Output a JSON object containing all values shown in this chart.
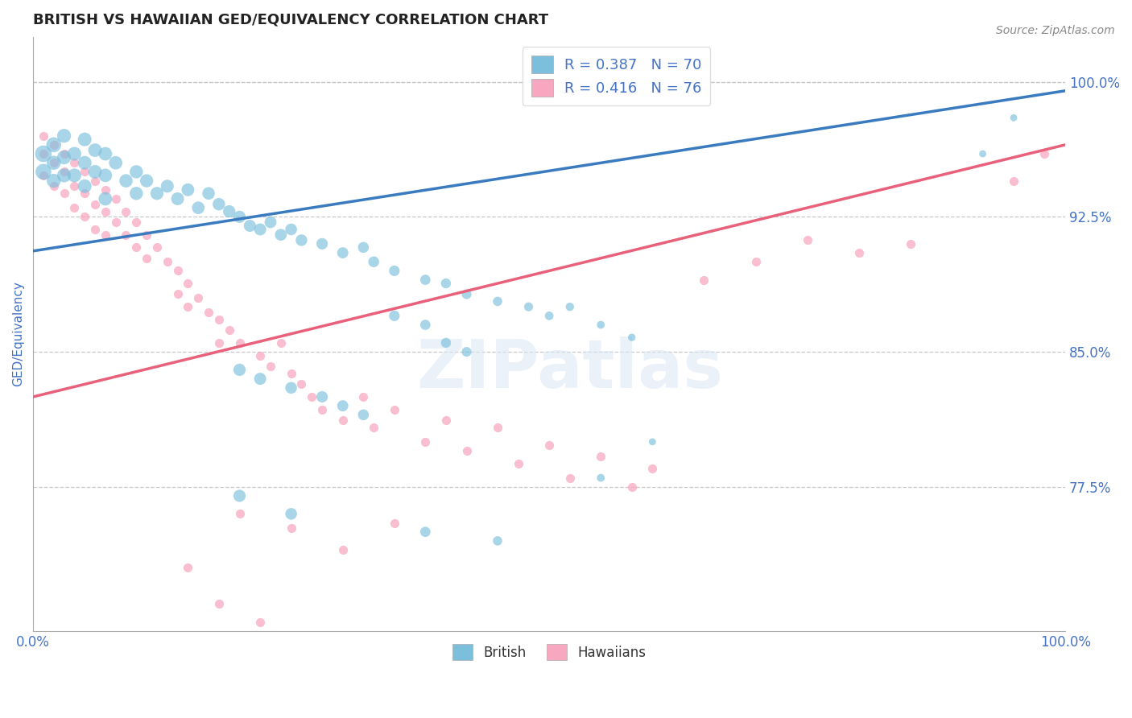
{
  "title": "BRITISH VS HAWAIIAN GED/EQUIVALENCY CORRELATION CHART",
  "source": "Source: ZipAtlas.com",
  "ylabel": "GED/Equivalency",
  "xlim": [
    0.0,
    1.0
  ],
  "ylim": [
    0.695,
    1.025
  ],
  "yticks": [
    0.775,
    0.85,
    0.925,
    1.0
  ],
  "ytick_labels": [
    "77.5%",
    "85.0%",
    "92.5%",
    "100.0%"
  ],
  "xtick_labels": [
    "0.0%",
    "100.0%"
  ],
  "xticks": [
    0.0,
    1.0
  ],
  "british_color": "#7bbfdd",
  "hawaiian_color": "#f7a8c0",
  "line_british_color": "#3a7abf",
  "line_hawaiian_color": "#e8607a",
  "british_R": 0.387,
  "british_N": 70,
  "hawaiian_R": 0.416,
  "hawaiian_N": 76,
  "legend_label_british": "British",
  "legend_label_hawaiian": "Hawaiians",
  "watermark": "ZIPatlas",
  "grid_color": "#c8c8c8",
  "title_color": "#333333",
  "axis_label_color": "#4472c4",
  "tick_label_color": "#4472c4",
  "british_points": [
    [
      0.01,
      0.96
    ],
    [
      0.01,
      0.95
    ],
    [
      0.02,
      0.965
    ],
    [
      0.02,
      0.955
    ],
    [
      0.02,
      0.945
    ],
    [
      0.03,
      0.97
    ],
    [
      0.03,
      0.958
    ],
    [
      0.03,
      0.948
    ],
    [
      0.04,
      0.96
    ],
    [
      0.04,
      0.948
    ],
    [
      0.05,
      0.968
    ],
    [
      0.05,
      0.955
    ],
    [
      0.05,
      0.942
    ],
    [
      0.06,
      0.962
    ],
    [
      0.06,
      0.95
    ],
    [
      0.07,
      0.96
    ],
    [
      0.07,
      0.948
    ],
    [
      0.07,
      0.935
    ],
    [
      0.08,
      0.955
    ],
    [
      0.09,
      0.945
    ],
    [
      0.1,
      0.95
    ],
    [
      0.1,
      0.938
    ],
    [
      0.11,
      0.945
    ],
    [
      0.12,
      0.938
    ],
    [
      0.13,
      0.942
    ],
    [
      0.14,
      0.935
    ],
    [
      0.15,
      0.94
    ],
    [
      0.16,
      0.93
    ],
    [
      0.17,
      0.938
    ],
    [
      0.18,
      0.932
    ],
    [
      0.19,
      0.928
    ],
    [
      0.2,
      0.925
    ],
    [
      0.21,
      0.92
    ],
    [
      0.22,
      0.918
    ],
    [
      0.23,
      0.922
    ],
    [
      0.24,
      0.915
    ],
    [
      0.25,
      0.918
    ],
    [
      0.26,
      0.912
    ],
    [
      0.28,
      0.91
    ],
    [
      0.3,
      0.905
    ],
    [
      0.32,
      0.908
    ],
    [
      0.33,
      0.9
    ],
    [
      0.35,
      0.895
    ],
    [
      0.38,
      0.89
    ],
    [
      0.4,
      0.888
    ],
    [
      0.42,
      0.882
    ],
    [
      0.45,
      0.878
    ],
    [
      0.48,
      0.875
    ],
    [
      0.5,
      0.87
    ],
    [
      0.52,
      0.875
    ],
    [
      0.55,
      0.865
    ],
    [
      0.58,
      0.858
    ],
    [
      0.35,
      0.87
    ],
    [
      0.38,
      0.865
    ],
    [
      0.4,
      0.855
    ],
    [
      0.42,
      0.85
    ],
    [
      0.2,
      0.84
    ],
    [
      0.22,
      0.835
    ],
    [
      0.25,
      0.83
    ],
    [
      0.28,
      0.825
    ],
    [
      0.3,
      0.82
    ],
    [
      0.32,
      0.815
    ],
    [
      0.2,
      0.77
    ],
    [
      0.25,
      0.76
    ],
    [
      0.38,
      0.75
    ],
    [
      0.45,
      0.745
    ],
    [
      0.55,
      0.78
    ],
    [
      0.6,
      0.8
    ],
    [
      0.92,
      0.96
    ],
    [
      0.95,
      0.98
    ]
  ],
  "hawaiian_points": [
    [
      0.01,
      0.97
    ],
    [
      0.01,
      0.96
    ],
    [
      0.01,
      0.948
    ],
    [
      0.02,
      0.965
    ],
    [
      0.02,
      0.955
    ],
    [
      0.02,
      0.942
    ],
    [
      0.03,
      0.96
    ],
    [
      0.03,
      0.95
    ],
    [
      0.03,
      0.938
    ],
    [
      0.04,
      0.955
    ],
    [
      0.04,
      0.942
    ],
    [
      0.04,
      0.93
    ],
    [
      0.05,
      0.95
    ],
    [
      0.05,
      0.938
    ],
    [
      0.05,
      0.925
    ],
    [
      0.06,
      0.945
    ],
    [
      0.06,
      0.932
    ],
    [
      0.06,
      0.918
    ],
    [
      0.07,
      0.94
    ],
    [
      0.07,
      0.928
    ],
    [
      0.07,
      0.915
    ],
    [
      0.08,
      0.935
    ],
    [
      0.08,
      0.922
    ],
    [
      0.09,
      0.928
    ],
    [
      0.09,
      0.915
    ],
    [
      0.1,
      0.922
    ],
    [
      0.1,
      0.908
    ],
    [
      0.11,
      0.915
    ],
    [
      0.11,
      0.902
    ],
    [
      0.12,
      0.908
    ],
    [
      0.13,
      0.9
    ],
    [
      0.14,
      0.895
    ],
    [
      0.14,
      0.882
    ],
    [
      0.15,
      0.888
    ],
    [
      0.15,
      0.875
    ],
    [
      0.16,
      0.88
    ],
    [
      0.17,
      0.872
    ],
    [
      0.18,
      0.868
    ],
    [
      0.18,
      0.855
    ],
    [
      0.19,
      0.862
    ],
    [
      0.2,
      0.855
    ],
    [
      0.22,
      0.848
    ],
    [
      0.23,
      0.842
    ],
    [
      0.24,
      0.855
    ],
    [
      0.25,
      0.838
    ],
    [
      0.26,
      0.832
    ],
    [
      0.27,
      0.825
    ],
    [
      0.28,
      0.818
    ],
    [
      0.3,
      0.812
    ],
    [
      0.32,
      0.825
    ],
    [
      0.33,
      0.808
    ],
    [
      0.35,
      0.818
    ],
    [
      0.38,
      0.8
    ],
    [
      0.4,
      0.812
    ],
    [
      0.42,
      0.795
    ],
    [
      0.45,
      0.808
    ],
    [
      0.47,
      0.788
    ],
    [
      0.5,
      0.798
    ],
    [
      0.52,
      0.78
    ],
    [
      0.55,
      0.792
    ],
    [
      0.58,
      0.775
    ],
    [
      0.6,
      0.785
    ],
    [
      0.65,
      0.89
    ],
    [
      0.7,
      0.9
    ],
    [
      0.75,
      0.912
    ],
    [
      0.8,
      0.905
    ],
    [
      0.85,
      0.91
    ],
    [
      0.2,
      0.76
    ],
    [
      0.25,
      0.752
    ],
    [
      0.3,
      0.74
    ],
    [
      0.35,
      0.755
    ],
    [
      0.15,
      0.73
    ],
    [
      0.18,
      0.71
    ],
    [
      0.22,
      0.7
    ],
    [
      0.95,
      0.945
    ],
    [
      0.98,
      0.96
    ]
  ],
  "british_line_x": [
    0.0,
    1.0
  ],
  "british_line_y": [
    0.906,
    0.995
  ],
  "hawaiian_line_x": [
    0.0,
    1.0
  ],
  "hawaiian_line_y": [
    0.825,
    0.965
  ]
}
